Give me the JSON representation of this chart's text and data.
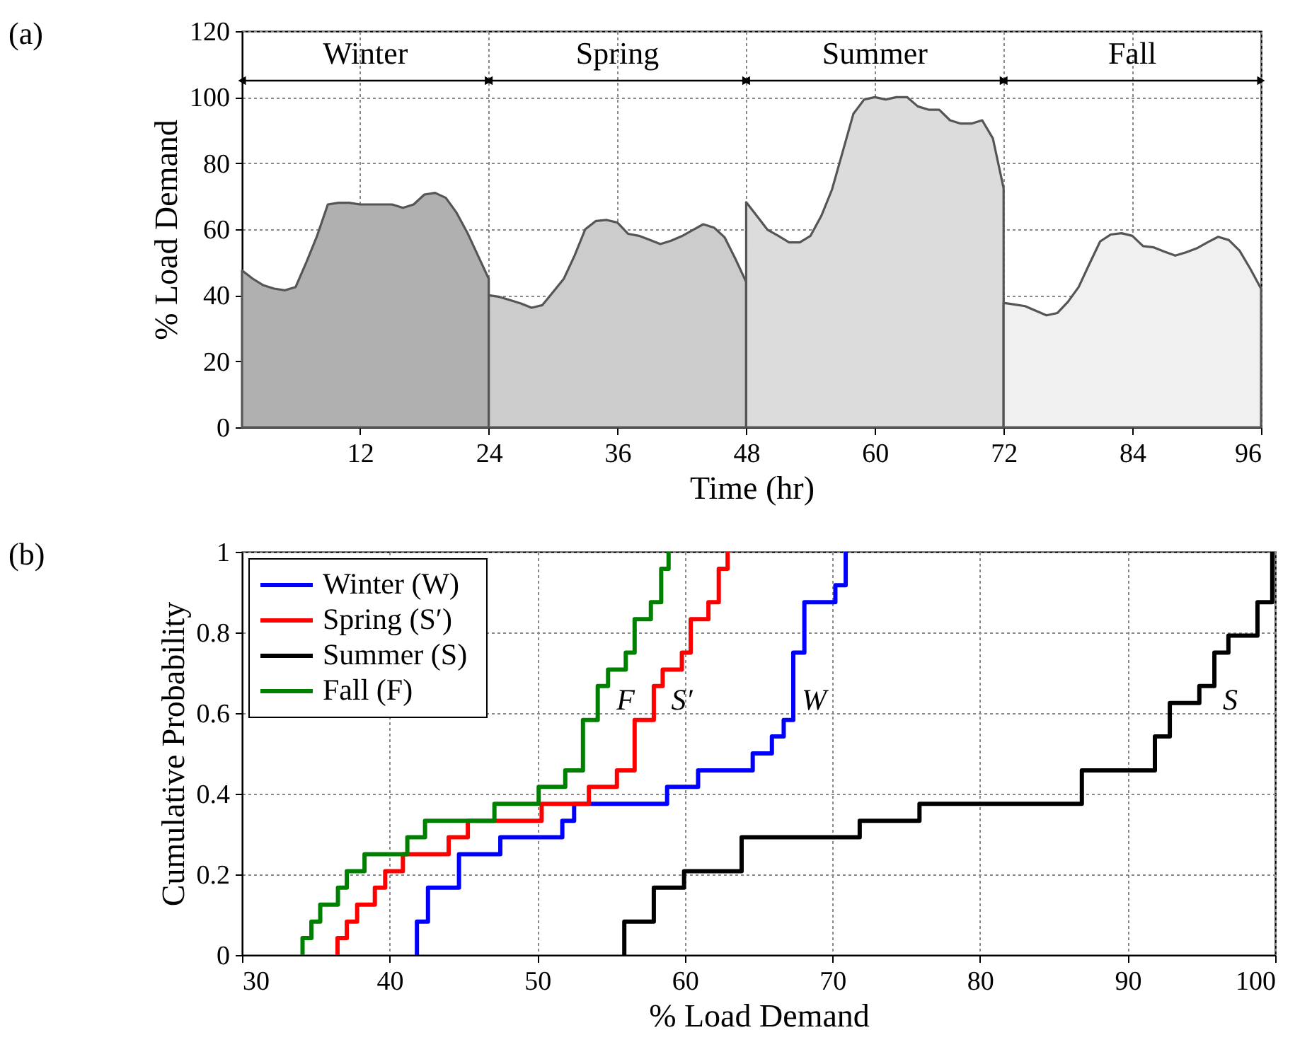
{
  "chart_data": [
    {
      "type": "area",
      "xlabel": "Time (hr)",
      "ylabel": "% Load Demand",
      "xlim": [
        1,
        96
      ],
      "xticks": [
        12,
        24,
        36,
        48,
        60,
        72,
        84,
        96
      ],
      "ylim": [
        0,
        120
      ],
      "yticks": [
        0,
        20,
        40,
        60,
        80,
        100,
        120
      ],
      "grid": true,
      "annotations": [
        "(a)",
        "Winter",
        "Spring",
        "Summer",
        "Fall"
      ],
      "series": [
        {
          "color": "#b0b0b0",
          "x": [
            1,
            2,
            3,
            4,
            5,
            6,
            7,
            8,
            9,
            10,
            11,
            12,
            13,
            14,
            15,
            16,
            17,
            18,
            19,
            20,
            21,
            22,
            23,
            24
          ],
          "values": [
            47.5,
            45,
            43,
            42,
            41.5,
            42.5,
            50,
            58,
            67.5,
            68,
            68,
            67.5,
            67.5,
            67.5,
            67.5,
            66.5,
            67.5,
            70.5,
            71,
            69.5,
            65,
            59,
            52,
            45
          ]
        },
        {
          "color": "#cccccc",
          "x": [
            24,
            25,
            26,
            27,
            28,
            29,
            30,
            31,
            32,
            33,
            34,
            35,
            36,
            37,
            38,
            39,
            40,
            41,
            42,
            43,
            44,
            45,
            46,
            47,
            48
          ],
          "values": [
            40,
            39.5,
            38.5,
            37.5,
            36.2,
            37,
            41,
            45,
            52,
            60,
            62.5,
            62.8,
            62,
            58.6,
            58,
            56.8,
            55.5,
            56.5,
            57.9,
            59.7,
            61.5,
            60.5,
            57.5,
            51,
            44
          ]
        },
        {
          "color": "#dcdcdc",
          "x": [
            48,
            49,
            50,
            51,
            52,
            53,
            54,
            55,
            56,
            57,
            58,
            59,
            60,
            61,
            62,
            63,
            64,
            65,
            66,
            67,
            68,
            69,
            70,
            71,
            72
          ],
          "values": [
            68.2,
            64,
            59.8,
            58,
            56,
            56,
            58,
            64,
            72,
            83.5,
            95,
            99.3,
            100,
            99.3,
            100,
            100,
            97.2,
            96.2,
            96.2,
            93,
            92,
            92,
            93,
            87.5,
            72.4
          ]
        },
        {
          "color": "#f0f0f0",
          "x": [
            72,
            73,
            74,
            75,
            76,
            77,
            78,
            79,
            80,
            81,
            82,
            83,
            84,
            85,
            86,
            87,
            88,
            89,
            90,
            91,
            92,
            93,
            94,
            95,
            96
          ],
          "values": [
            37.7,
            37.2,
            36.7,
            35.3,
            33.9,
            34.6,
            38,
            42.5,
            49.5,
            56.3,
            58.4,
            58.8,
            58,
            54.9,
            54.5,
            53.2,
            52,
            53,
            54.2,
            56,
            57.7,
            56.7,
            53.5,
            48,
            42
          ]
        }
      ]
    },
    {
      "type": "step",
      "xlabel": "% Load Demand",
      "ylabel": "Cumulative Probability",
      "xlim": [
        30,
        100
      ],
      "xticks": [
        30,
        40,
        50,
        60,
        70,
        80,
        90,
        100
      ],
      "ylim": [
        0,
        1
      ],
      "yticks": [
        0,
        0.2,
        0.4,
        0.6,
        0.8,
        1
      ],
      "grid": true,
      "legend": "top left",
      "annotations": [
        "(b)",
        "W",
        "S′",
        "S",
        "F"
      ],
      "series": [
        {
          "name": "Winter (W)",
          "color": "#0000ff",
          "x": [
            41.85,
            41.85,
            42.6,
            44.7,
            47.5,
            51.7,
            52.5,
            58.8,
            60.9,
            64.6,
            65.9,
            66.7,
            67.35,
            68.1,
            70.2,
            70.9
          ],
          "values": [
            0,
            0.083,
            0.167,
            0.25,
            0.292,
            0.333,
            0.375,
            0.417,
            0.458,
            0.5,
            0.542,
            0.583,
            0.75,
            0.875,
            0.917,
            1
          ]
        },
        {
          "name": "Spring (S′)",
          "color": "#ff0000",
          "x": [
            36.47,
            36.47,
            37.1,
            37.8,
            39.0,
            39.7,
            40.9,
            44.0,
            45.3,
            50.3,
            53.5,
            55.4,
            56.6,
            57.9,
            58.5,
            59.8,
            60.4,
            61.6,
            62.3,
            62.9
          ],
          "values": [
            0,
            0.042,
            0.083,
            0.125,
            0.167,
            0.208,
            0.25,
            0.292,
            0.333,
            0.375,
            0.417,
            0.458,
            0.583,
            0.667,
            0.708,
            0.75,
            0.833,
            0.875,
            0.958,
            1
          ]
        },
        {
          "name": "Summer (S)",
          "color": "#000000",
          "x": [
            55.9,
            55.9,
            57.9,
            59.95,
            63.85,
            71.85,
            75.9,
            86.9,
            91.85,
            92.86,
            94.86,
            95.88,
            96.83,
            98.8,
            99.8
          ],
          "values": [
            0,
            0.083,
            0.167,
            0.208,
            0.292,
            0.333,
            0.375,
            0.458,
            0.542,
            0.625,
            0.667,
            0.75,
            0.792,
            0.875,
            1
          ]
        },
        {
          "name": "Fall (F)",
          "color": "#008000",
          "x": [
            34.1,
            34.1,
            34.7,
            35.3,
            36.5,
            37.1,
            38.3,
            41.2,
            42.4,
            47.1,
            50.1,
            51.9,
            53.1,
            54.1,
            54.8,
            56.0,
            56.6,
            57.7,
            58.4,
            58.9
          ],
          "values": [
            0,
            0.042,
            0.083,
            0.125,
            0.167,
            0.208,
            0.25,
            0.292,
            0.333,
            0.375,
            0.417,
            0.458,
            0.583,
            0.667,
            0.708,
            0.75,
            0.833,
            0.875,
            0.958,
            1
          ]
        }
      ]
    }
  ]
}
